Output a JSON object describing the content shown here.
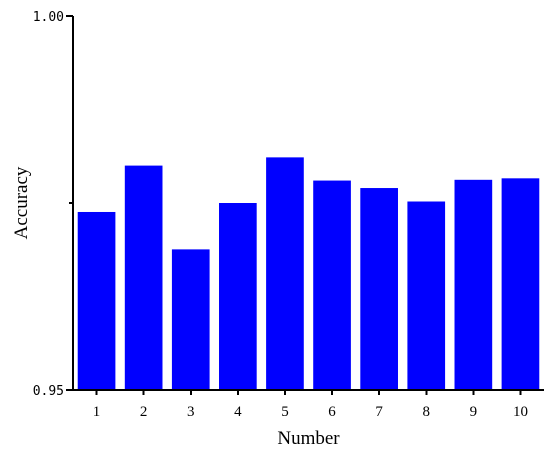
{
  "chart_data": {
    "type": "bar",
    "title": "",
    "xlabel": "Number",
    "ylabel": "Accuracy",
    "categories": [
      "1",
      "2",
      "3",
      "4",
      "5",
      "6",
      "7",
      "8",
      "9",
      "10"
    ],
    "values": [
      0.9738,
      0.98,
      0.9688,
      0.975,
      0.9811,
      0.978,
      0.977,
      0.9752,
      0.9781,
      0.9783
    ],
    "ylim": [
      0.95,
      1.0
    ],
    "yticks": [
      "0.95",
      "1.00"
    ],
    "y_minor_tick": 0.975,
    "grid": false,
    "bar_color": "#0000ff"
  }
}
